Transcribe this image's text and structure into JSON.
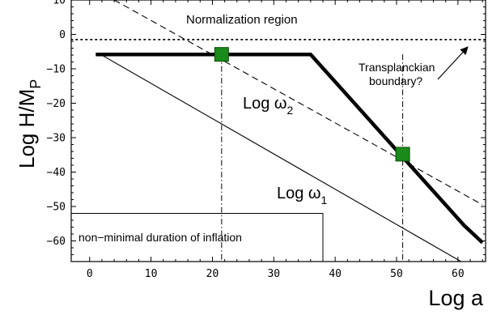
{
  "chart_data": {
    "type": "line",
    "xlabel": "Log a",
    "ylabel": {
      "main": "Log H/M",
      "sub": "P"
    },
    "xlim": [
      -3,
      64.5
    ],
    "ylim": [
      -66,
      10
    ],
    "x_ticks": [
      0,
      10,
      20,
      30,
      40,
      50,
      60
    ],
    "y_ticks": [
      10,
      0,
      -10,
      -20,
      -30,
      -40,
      -50,
      -60
    ],
    "grid": false,
    "series": [
      {
        "name": "Log H/M_P",
        "style": "thick",
        "points": [
          [
            1,
            -5.8
          ],
          [
            36,
            -5.8
          ],
          [
            61,
            -55.5
          ],
          [
            64,
            -60.5
          ]
        ]
      },
      {
        "name": "Log ω1",
        "style": "thin",
        "points": [
          [
            1.5,
            -5.5
          ],
          [
            60.5,
            -66
          ]
        ]
      },
      {
        "name": "Log ω2",
        "style": "dashed",
        "points": [
          [
            4,
            10
          ],
          [
            64,
            -49.5
          ]
        ]
      }
    ],
    "markers": [
      {
        "x": 21.5,
        "y": -5.8,
        "color": "#1a8a1a"
      },
      {
        "x": 51,
        "y": -34.8,
        "color": "#1a8a1a"
      }
    ],
    "normalization_level": -1.5,
    "vertical_lines": [
      21.5,
      51
    ],
    "inflation_box": {
      "x_end": 38,
      "y_top": -52
    },
    "annotations": {
      "normalization_region": "Normalization region",
      "transplanckian_line1": "Transplanckian",
      "transplanckian_line2": "boundary?",
      "log_omega2_base": "Log ω",
      "log_omega2_sub": "2",
      "log_omega1_base": "Log ω",
      "log_omega1_sub": "1",
      "inflation_duration": "non−minimal duration of inflation"
    }
  }
}
